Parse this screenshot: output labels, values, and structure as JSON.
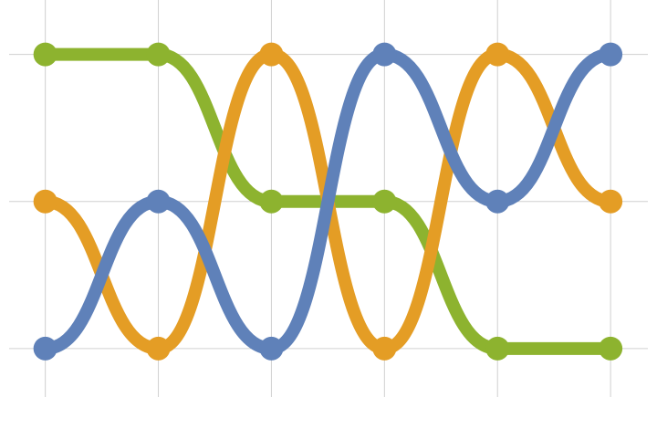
{
  "chart_data": {
    "type": "bump",
    "x": [
      0,
      1,
      2,
      3,
      4,
      5
    ],
    "xlim": [
      -0.32,
      5.33
    ],
    "xticks": [
      0,
      1,
      2,
      3,
      4,
      5
    ],
    "ylim": [
      3.33,
      0.63
    ],
    "yticks": [
      1,
      2,
      3
    ],
    "grid": true,
    "series": [
      {
        "color": "#8db32f",
        "values": [
          1,
          1,
          2,
          2,
          3,
          3
        ]
      },
      {
        "color": "#e49d25",
        "values": [
          2,
          3,
          1,
          3,
          1,
          2
        ]
      },
      {
        "color": "#5f81b9",
        "values": [
          3,
          2,
          3,
          1,
          2,
          1
        ]
      }
    ]
  }
}
